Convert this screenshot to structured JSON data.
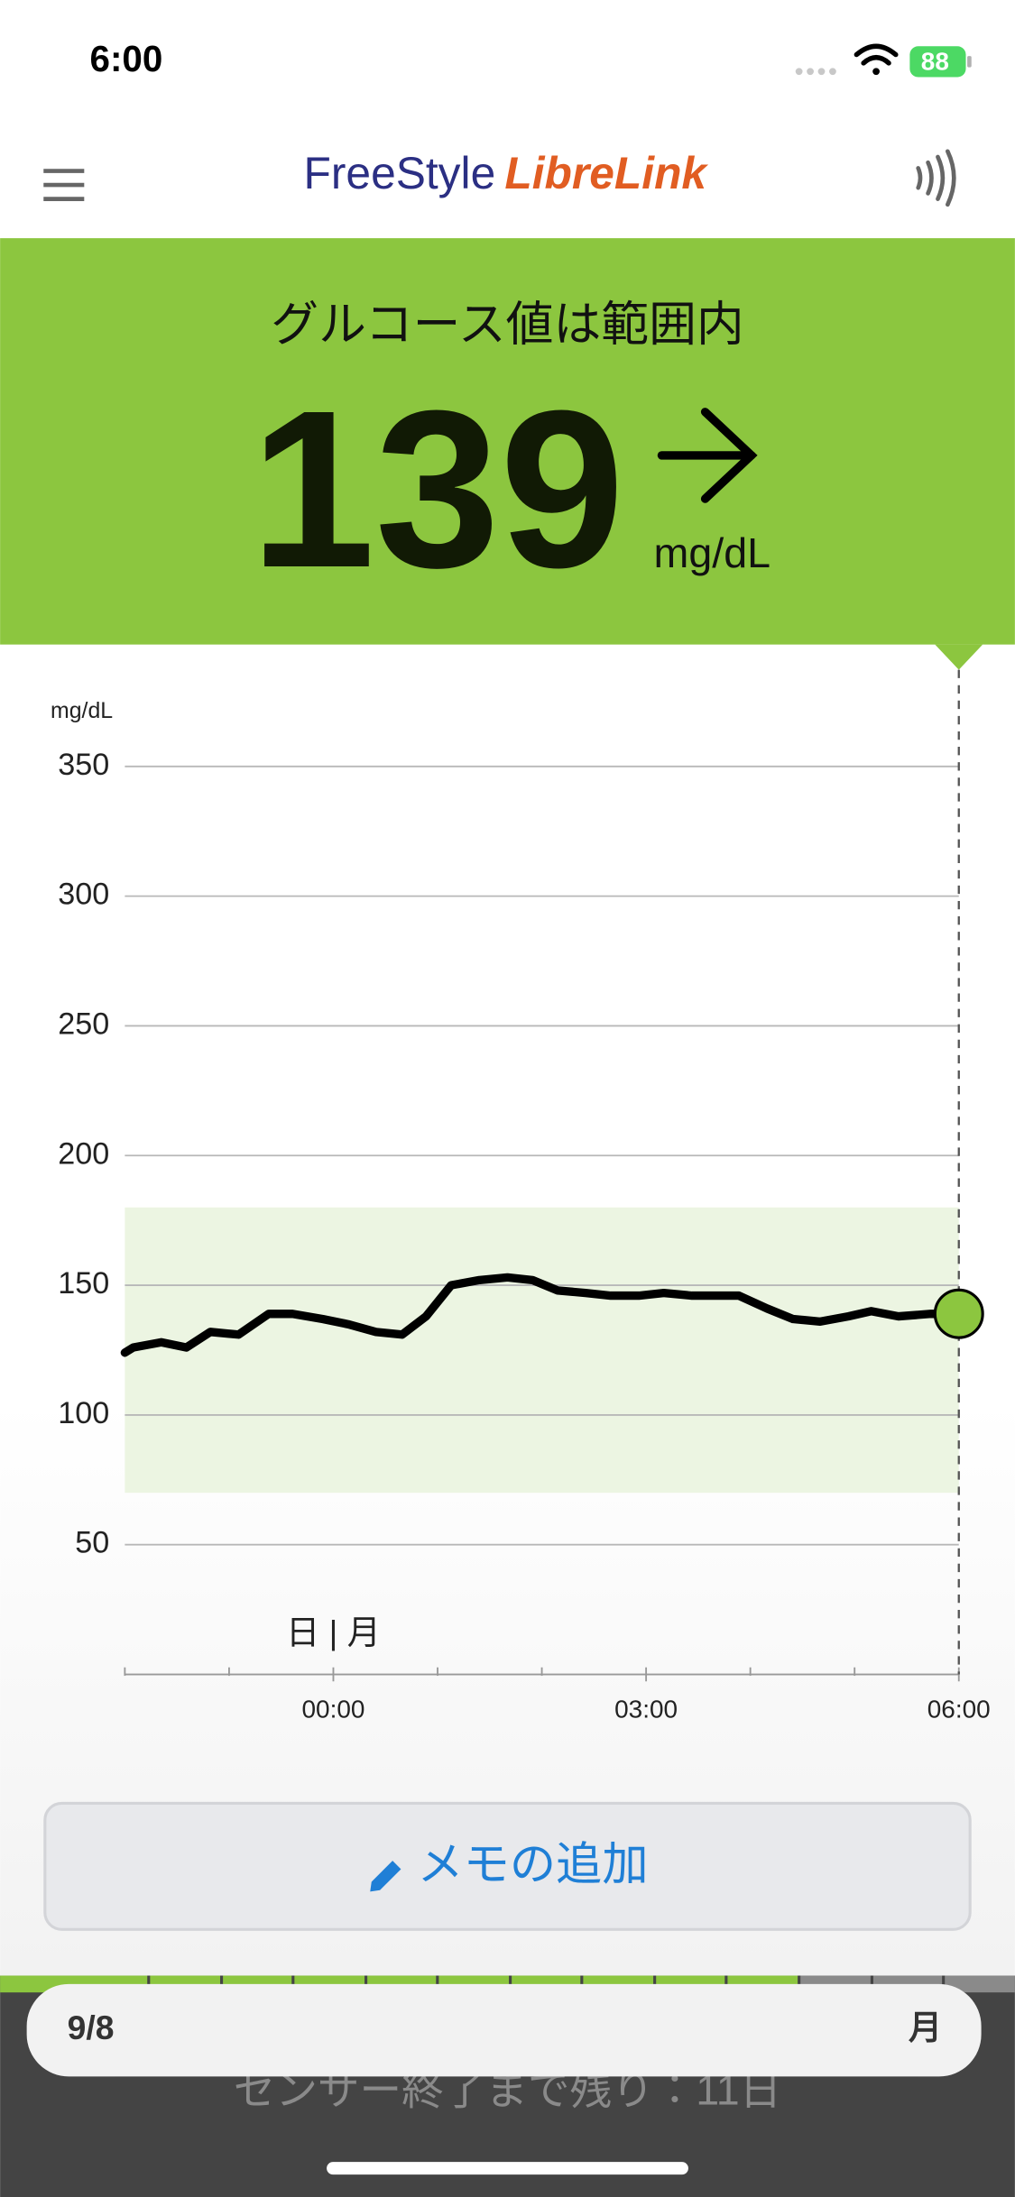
{
  "status_bar": {
    "time": "6:00",
    "battery": "88"
  },
  "header": {
    "logo_brand": "FreeStyle",
    "logo_product": "LibreLink"
  },
  "banner": {
    "status": "グルコース値は範囲内",
    "value": "139",
    "unit": "mg/dL"
  },
  "chart_data": {
    "type": "line",
    "y_label": "mg/dL",
    "day_label": "日 | 月",
    "x": [
      -2,
      -1.92,
      -1.65,
      -1.41,
      -1.18,
      -0.91,
      -0.62,
      -0.39,
      -0.1,
      0.14,
      0.41,
      0.66,
      0.89,
      1.13,
      1.4,
      1.67,
      1.91,
      2.15,
      2.42,
      2.66,
      2.93,
      3.17,
      3.44,
      3.89,
      4.16,
      4.41,
      4.67,
      4.94,
      5.16,
      5.42,
      5.73,
      6
    ],
    "values": [
      124,
      126,
      128,
      126,
      132,
      131,
      139,
      139,
      137,
      135,
      132,
      131,
      138,
      150,
      152,
      153,
      152,
      148,
      147,
      146,
      146,
      147,
      146,
      146,
      141,
      137,
      136,
      138,
      140,
      138,
      139,
      139
    ],
    "color": "#000000",
    "marker_color": "#8cc63f",
    "target_range": [
      70,
      180
    ],
    "target_color": "#ecf5e2",
    "xlim": [
      -2,
      6
    ],
    "xticks": [
      {
        "value": 0,
        "label": "00:00"
      },
      {
        "value": 3,
        "label": "03:00"
      },
      {
        "value": 6,
        "label": "06:00"
      }
    ],
    "xminorticks": [
      -2,
      -1,
      1,
      2,
      4,
      5
    ],
    "ylim": [
      0,
      350
    ],
    "yticks": [
      50,
      100,
      150,
      200,
      250,
      300,
      350
    ],
    "grid": true
  },
  "button": {
    "label": "メモの追加"
  },
  "footer": {
    "date": "9/8",
    "weekday": "月",
    "sensor_remaining": "センサー終了まで残り：11日"
  }
}
